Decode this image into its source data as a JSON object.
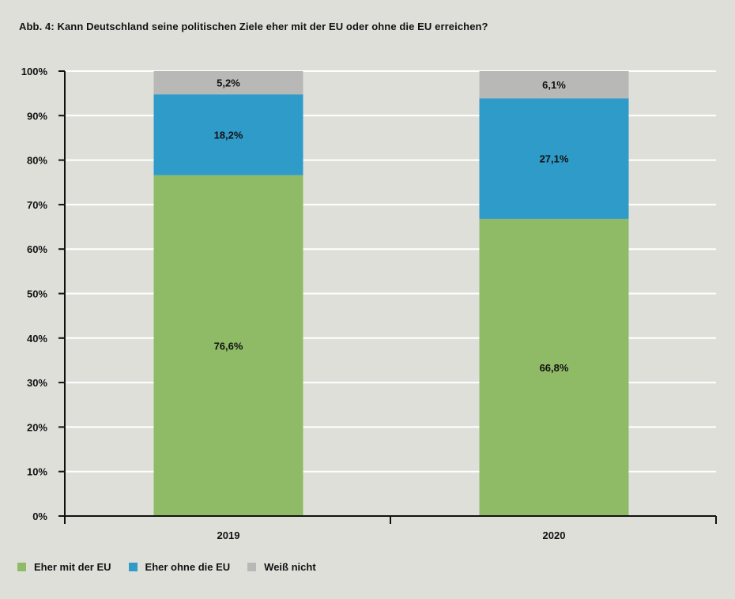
{
  "chart_data": {
    "type": "bar",
    "stacked": true,
    "title": "Abb. 4: Kann Deutschland seine politischen Ziele eher mit der EU oder ohne die EU erreichen?",
    "categories": [
      "2019",
      "2020"
    ],
    "series": [
      {
        "name": "Eher mit der EU",
        "values": [
          76.6,
          66.8
        ],
        "labels": [
          "76,6%",
          "66,8%"
        ],
        "color": "#8fbb66"
      },
      {
        "name": "Eher ohne die EU",
        "values": [
          18.2,
          27.1
        ],
        "labels": [
          "18,2%",
          "27,1%"
        ],
        "color": "#2f9bc9"
      },
      {
        "name": "Weiß nicht",
        "values": [
          5.2,
          6.1
        ],
        "labels": [
          "5,2%",
          "6,1%"
        ],
        "color": "#b8b8b6"
      }
    ],
    "ylim": [
      0,
      100
    ],
    "yticks": [
      0,
      10,
      20,
      30,
      40,
      50,
      60,
      70,
      80,
      90,
      100
    ],
    "ytick_labels": [
      "0%",
      "10%",
      "20%",
      "30%",
      "40%",
      "50%",
      "60%",
      "70%",
      "80%",
      "90%",
      "100%"
    ],
    "xlabel": "",
    "ylabel": "",
    "grid": true,
    "legend_position": "bottom-left"
  }
}
